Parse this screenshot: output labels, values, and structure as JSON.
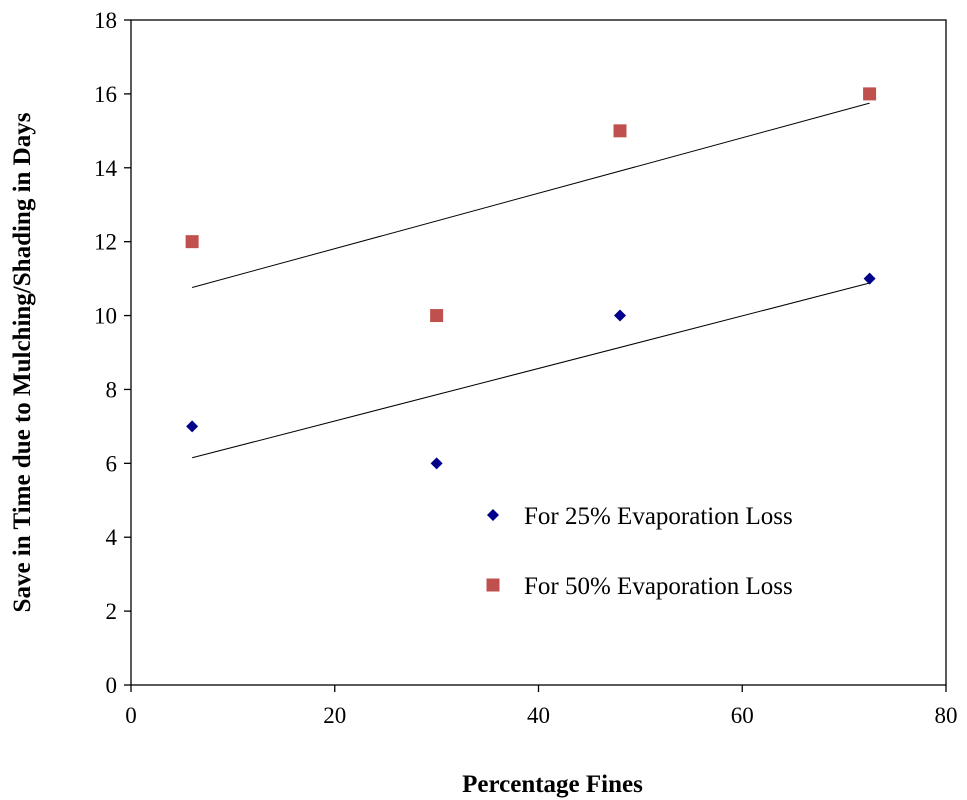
{
  "chart_data": {
    "type": "scatter",
    "title": "",
    "xlabel": "Percentage Fines",
    "ylabel": "Save in Time due to Mulching/Shading in Days",
    "xlim": [
      0,
      80
    ],
    "ylim": [
      0,
      18
    ],
    "x_ticks": [
      "0",
      "20",
      "40",
      "60",
      "80"
    ],
    "y_ticks": [
      "0",
      "2",
      "4",
      "6",
      "8",
      "10",
      "12",
      "14",
      "16",
      "18"
    ],
    "grid": false,
    "legend_position": "bottom-right inside plot",
    "series": [
      {
        "name": "For 25% Evaporation Loss",
        "marker": "diamond",
        "color": "#00008B",
        "x": [
          6,
          30,
          48,
          72.5
        ],
        "y": [
          7,
          6,
          10,
          11
        ],
        "trendline": {
          "x": [
            6,
            72.5
          ],
          "y": [
            6.15,
            10.88
          ]
        }
      },
      {
        "name": "For 50% Evaporation Loss",
        "marker": "square",
        "color": "#C0504D",
        "x": [
          6,
          30,
          48,
          72.5
        ],
        "y": [
          12,
          10,
          15,
          16
        ],
        "trendline": {
          "x": [
            6,
            72.5
          ],
          "y": [
            10.76,
            15.75
          ]
        }
      }
    ]
  }
}
